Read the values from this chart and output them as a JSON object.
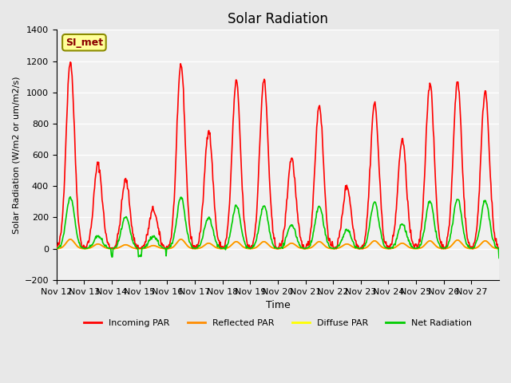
{
  "title": "Solar Radiation",
  "xlabel": "Time",
  "ylabel": "Solar Radiation (W/m2 or um/m2/s)",
  "ylim": [
    -200,
    1400
  ],
  "yticks": [
    -200,
    0,
    200,
    400,
    600,
    800,
    1000,
    1200,
    1400
  ],
  "x_labels": [
    "Nov 12",
    "Nov 13",
    "Nov 14",
    "Nov 15",
    "Nov 16",
    "Nov 17",
    "Nov 18",
    "Nov 19",
    "Nov 20",
    "Nov 21",
    "Nov 22",
    "Nov 23",
    "Nov 24",
    "Nov 25",
    "Nov 26",
    "Nov 27"
  ],
  "annotation_text": "SI_met",
  "annotation_color": "#8B0000",
  "annotation_bg": "#FFFF99",
  "annotation_border": "#8B8B00",
  "colors": {
    "incoming": "#FF0000",
    "reflected": "#FF8C00",
    "diffuse": "#FFFF00",
    "net": "#00CC00"
  },
  "legend_labels": [
    "Incoming PAR",
    "Reflected PAR",
    "Diffuse PAR",
    "Net Radiation"
  ],
  "bg_color": "#E8E8E8",
  "plot_bg": "#F0F0F0",
  "grid_color": "#FFFFFF",
  "linewidth": 1.2,
  "days": 16,
  "incoming_peaks": [
    1200,
    540,
    440,
    250,
    1180,
    760,
    1070,
    1080,
    580,
    920,
    400,
    930,
    700,
    1060,
    1070,
    1010
  ],
  "net_peaks": [
    330,
    80,
    200,
    80,
    330,
    200,
    275,
    275,
    155,
    270,
    120,
    300,
    160,
    300,
    320,
    310
  ],
  "reflected_peaks": [
    60,
    30,
    25,
    20,
    60,
    35,
    45,
    45,
    35,
    45,
    30,
    50,
    35,
    50,
    55,
    50
  ],
  "diffuse_peaks": [
    60,
    30,
    25,
    20,
    60,
    35,
    45,
    45,
    35,
    45,
    30,
    50,
    35,
    50,
    55,
    50
  ],
  "night_net": -50
}
